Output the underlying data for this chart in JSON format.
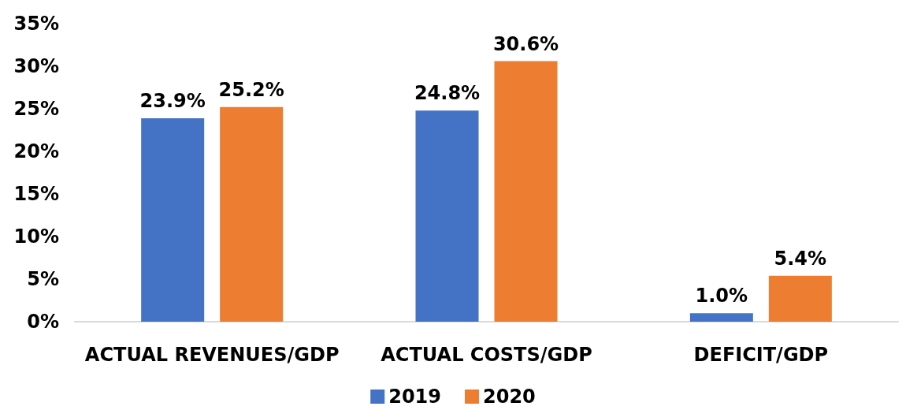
{
  "chart_data": {
    "type": "bar",
    "categories": [
      "ACTUAL REVENUES/GDP",
      "ACTUAL COSTS/GDP",
      "DEFICIT/GDP"
    ],
    "series": [
      {
        "name": "2019",
        "color": "#4472c4",
        "values": [
          23.9,
          24.8,
          1.0
        ],
        "value_labels": [
          "23.9%",
          "24.8%",
          "1.0%"
        ]
      },
      {
        "name": "2020",
        "color": "#ed7d31",
        "values": [
          25.2,
          30.6,
          5.4
        ],
        "value_labels": [
          "25.2%",
          "30.6%",
          "5.4%"
        ]
      }
    ],
    "ylim": [
      0,
      35
    ],
    "yticks": [
      {
        "value": 0,
        "label": "0%"
      },
      {
        "value": 5,
        "label": "5%"
      },
      {
        "value": 10,
        "label": "10%"
      },
      {
        "value": 15,
        "label": "15%"
      },
      {
        "value": 20,
        "label": "20%"
      },
      {
        "value": 25,
        "label": "25%"
      },
      {
        "value": 30,
        "label": "30%"
      },
      {
        "value": 35,
        "label": "35%"
      }
    ],
    "grid": false,
    "legend": "bottom"
  }
}
